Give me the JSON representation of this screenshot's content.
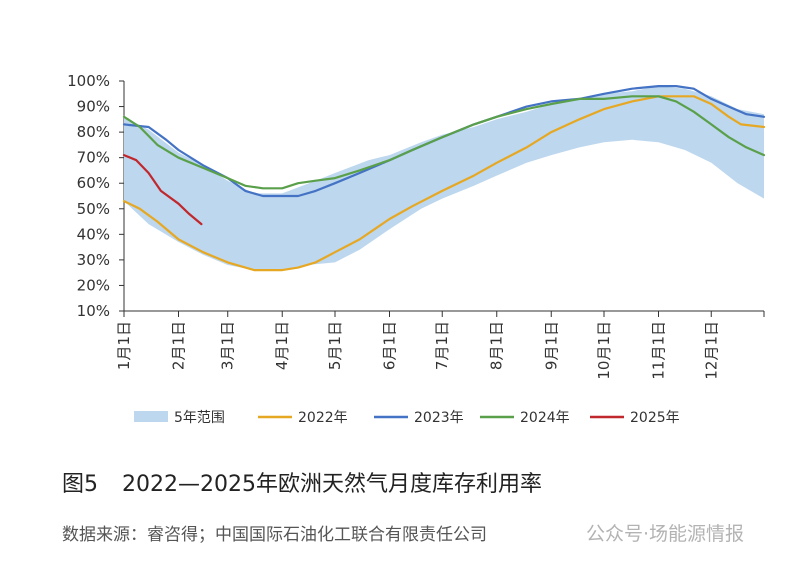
{
  "chart_data": {
    "type": "line",
    "x_type": "day_of_year",
    "x_categories": [
      "1月1日",
      "2月1日",
      "3月1日",
      "4月1日",
      "5月1日",
      "6月1日",
      "7月1日",
      "8月1日",
      "9月1日",
      "10月1日",
      "11月1日",
      "12月1日"
    ],
    "x_category_days": [
      1,
      32,
      60,
      91,
      121,
      152,
      182,
      213,
      244,
      274,
      305,
      335
    ],
    "xlim": [
      1,
      365
    ],
    "ylim": [
      10,
      100
    ],
    "y_ticks": [
      "100%",
      "90%",
      "80%",
      "70%",
      "60%",
      "50%",
      "40%",
      "30%",
      "20%",
      "10%"
    ],
    "y_tick_values": [
      100,
      90,
      80,
      70,
      60,
      50,
      40,
      30,
      20,
      10
    ],
    "band": {
      "name": "5年范围",
      "color": "#bdd7ee",
      "upper": [
        [
          1,
          86
        ],
        [
          15,
          81
        ],
        [
          32,
          72
        ],
        [
          46,
          67
        ],
        [
          60,
          61
        ],
        [
          75,
          56
        ],
        [
          91,
          56
        ],
        [
          110,
          61
        ],
        [
          121,
          64
        ],
        [
          140,
          69
        ],
        [
          152,
          71
        ],
        [
          170,
          76
        ],
        [
          182,
          79
        ],
        [
          200,
          82
        ],
        [
          213,
          85
        ],
        [
          230,
          88
        ],
        [
          244,
          91
        ],
        [
          260,
          93
        ],
        [
          274,
          95
        ],
        [
          290,
          96
        ],
        [
          305,
          98
        ],
        [
          320,
          97
        ],
        [
          335,
          94
        ],
        [
          350,
          89
        ],
        [
          365,
          87
        ]
      ],
      "lower": [
        [
          1,
          53
        ],
        [
          15,
          44
        ],
        [
          32,
          37
        ],
        [
          46,
          32
        ],
        [
          60,
          28
        ],
        [
          75,
          26
        ],
        [
          91,
          26
        ],
        [
          105,
          28
        ],
        [
          121,
          29
        ],
        [
          135,
          34
        ],
        [
          152,
          42
        ],
        [
          170,
          50
        ],
        [
          182,
          54
        ],
        [
          200,
          59
        ],
        [
          213,
          63
        ],
        [
          230,
          68
        ],
        [
          244,
          71
        ],
        [
          260,
          74
        ],
        [
          274,
          76
        ],
        [
          290,
          77
        ],
        [
          305,
          76
        ],
        [
          320,
          73
        ],
        [
          335,
          68
        ],
        [
          350,
          60
        ],
        [
          365,
          54
        ]
      ]
    },
    "series": [
      {
        "name": "2022年",
        "color": "#e6a823",
        "points": [
          [
            1,
            53
          ],
          [
            10,
            50
          ],
          [
            20,
            45
          ],
          [
            32,
            38
          ],
          [
            46,
            33
          ],
          [
            60,
            29
          ],
          [
            75,
            26
          ],
          [
            91,
            26
          ],
          [
            100,
            27
          ],
          [
            110,
            29
          ],
          [
            121,
            33
          ],
          [
            135,
            38
          ],
          [
            152,
            46
          ],
          [
            165,
            51
          ],
          [
            182,
            57
          ],
          [
            200,
            63
          ],
          [
            213,
            68
          ],
          [
            230,
            74
          ],
          [
            244,
            80
          ],
          [
            260,
            85
          ],
          [
            274,
            89
          ],
          [
            290,
            92
          ],
          [
            305,
            94
          ],
          [
            315,
            94
          ],
          [
            325,
            94
          ],
          [
            335,
            91
          ],
          [
            345,
            86
          ],
          [
            352,
            83
          ],
          [
            365,
            82
          ]
        ]
      },
      {
        "name": "2023年",
        "color": "#4472c4",
        "points": [
          [
            1,
            83
          ],
          [
            15,
            82
          ],
          [
            25,
            77
          ],
          [
            32,
            73
          ],
          [
            46,
            67
          ],
          [
            60,
            62
          ],
          [
            70,
            57
          ],
          [
            80,
            55
          ],
          [
            91,
            55
          ],
          [
            100,
            55
          ],
          [
            110,
            57
          ],
          [
            121,
            60
          ],
          [
            135,
            64
          ],
          [
            152,
            69
          ],
          [
            165,
            73
          ],
          [
            182,
            78
          ],
          [
            200,
            83
          ],
          [
            213,
            86
          ],
          [
            230,
            90
          ],
          [
            244,
            92
          ],
          [
            260,
            93
          ],
          [
            274,
            95
          ],
          [
            290,
            97
          ],
          [
            305,
            98
          ],
          [
            315,
            98
          ],
          [
            325,
            97
          ],
          [
            335,
            93
          ],
          [
            345,
            90
          ],
          [
            355,
            87
          ],
          [
            365,
            86
          ]
        ]
      },
      {
        "name": "2024年",
        "color": "#5aa04b",
        "points": [
          [
            1,
            86
          ],
          [
            10,
            82
          ],
          [
            20,
            75
          ],
          [
            32,
            70
          ],
          [
            46,
            66
          ],
          [
            60,
            62
          ],
          [
            70,
            59
          ],
          [
            80,
            58
          ],
          [
            91,
            58
          ],
          [
            100,
            60
          ],
          [
            110,
            61
          ],
          [
            121,
            62
          ],
          [
            135,
            65
          ],
          [
            152,
            69
          ],
          [
            165,
            73
          ],
          [
            182,
            78
          ],
          [
            200,
            83
          ],
          [
            213,
            86
          ],
          [
            230,
            89
          ],
          [
            244,
            91
          ],
          [
            260,
            93
          ],
          [
            274,
            93
          ],
          [
            290,
            94
          ],
          [
            305,
            94
          ],
          [
            315,
            92
          ],
          [
            325,
            88
          ],
          [
            335,
            83
          ],
          [
            345,
            78
          ],
          [
            355,
            74
          ],
          [
            365,
            71
          ]
        ]
      },
      {
        "name": "2025年",
        "color": "#c0282d",
        "points": [
          [
            1,
            71
          ],
          [
            8,
            69
          ],
          [
            15,
            64
          ],
          [
            22,
            57
          ],
          [
            32,
            52
          ],
          [
            38,
            48
          ],
          [
            45,
            44
          ]
        ]
      }
    ]
  },
  "caption": {
    "figure_number": "图5",
    "title": "2022—2025年欧洲天然气月度库存利用率"
  },
  "source": "数据来源：睿咨得；中国国际石油化工联合有限责任公司",
  "watermark": "公众号·场能源情报"
}
